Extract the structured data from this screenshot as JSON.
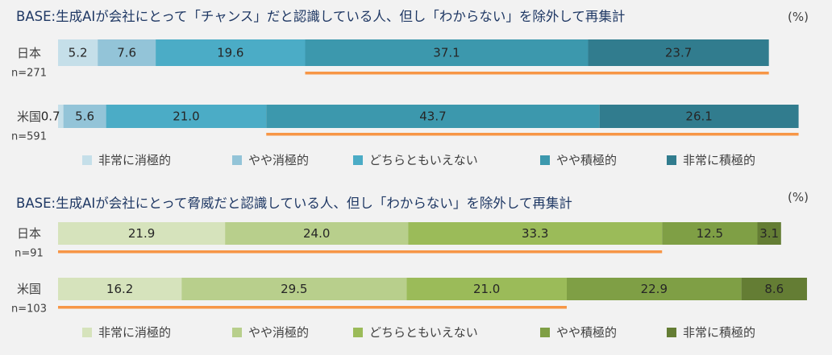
{
  "chart_data": [
    {
      "type": "bar",
      "stacked": true,
      "orientation": "horizontal",
      "title": "BASE:生成AIが会社にとって「チャンス」だと認識している人、但し「わからない」を除外して再集計",
      "unit": "(%)",
      "categories": [
        "日本",
        "米国"
      ],
      "category_notes": [
        "n=271",
        "n=591"
      ],
      "series": [
        {
          "name": "非常に消極的",
          "values": [
            5.2,
            0.7
          ],
          "color": "#c5dfe9"
        },
        {
          "name": "やや消極的",
          "values": [
            7.6,
            5.6
          ],
          "color": "#93c4d8"
        },
        {
          "name": "どちらともいえない",
          "values": [
            19.6,
            21.0
          ],
          "color": "#4bacc6"
        },
        {
          "name": "やや積極的",
          "values": [
            37.1,
            43.7
          ],
          "color": "#3c98ad"
        },
        {
          "name": "非常に積極的",
          "values": [
            23.7,
            26.1
          ],
          "color": "#317c8e"
        }
      ],
      "xlim": [
        0,
        100
      ],
      "highlight": {
        "color": "#f79646",
        "segments_from": 3
      },
      "legend_position": "bottom"
    },
    {
      "type": "bar",
      "stacked": true,
      "orientation": "horizontal",
      "title": "BASE:生成AIが会社にとって脅威だと認識している人、但し「わからない」を除外して再集計",
      "unit": "(%)",
      "categories": [
        "日本",
        "米国"
      ],
      "category_notes": [
        "n=91",
        "n=103"
      ],
      "series": [
        {
          "name": "非常に消極的",
          "values": [
            21.9,
            16.2
          ],
          "color": "#d6e3bc"
        },
        {
          "name": "やや消極的",
          "values": [
            24.0,
            29.5
          ],
          "color": "#b8cf8c"
        },
        {
          "name": "どちらともいえない",
          "values": [
            33.3,
            21.0
          ],
          "color": "#9bbb59"
        },
        {
          "name": "やや積極的",
          "values": [
            12.5,
            22.9
          ],
          "color": "#7f9f45"
        },
        {
          "name": "非常に積極的",
          "values": [
            3.1,
            8.6
          ],
          "color": "#647d34"
        }
      ],
      "xlim": [
        0,
        100
      ],
      "highlight": {
        "color": "#f79646",
        "segments_to": 2
      },
      "legend_position": "bottom"
    }
  ]
}
